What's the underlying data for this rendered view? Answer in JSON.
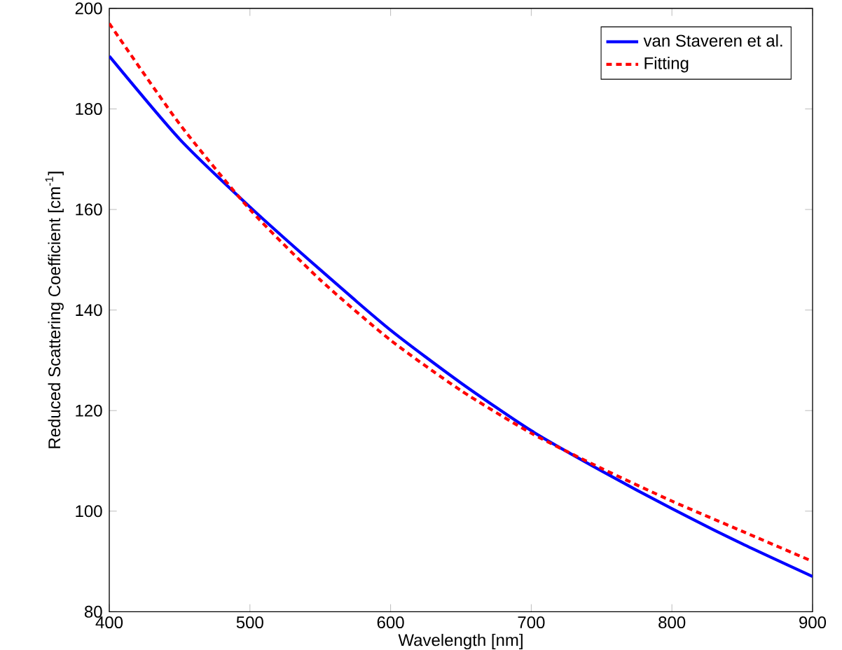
{
  "chart_data": {
    "type": "line",
    "xlabel": "Wavelength [nm]",
    "ylabel": "Reduced Scattering Coefficient [cm$^{-1}$]",
    "x": [
      400,
      450,
      500,
      550,
      600,
      650,
      700,
      750,
      800,
      850,
      900
    ],
    "series": [
      {
        "name": "van Staveren et al.",
        "color": "#0000ff",
        "line_style": "solid",
        "values": [
          190.5,
          174,
          160.5,
          148,
          136,
          125.5,
          116,
          108,
          100.5,
          93.5,
          87
        ]
      },
      {
        "name": "Fitting",
        "color": "#ff0000",
        "line_style": "dotted",
        "values": [
          197,
          177,
          160,
          146,
          134,
          124,
          115.5,
          108.5,
          102,
          96,
          90
        ]
      }
    ],
    "xlim": [
      400,
      900
    ],
    "ylim": [
      80,
      200
    ],
    "xticks": [
      400,
      500,
      600,
      700,
      800,
      900
    ],
    "yticks": [
      80,
      100,
      120,
      140,
      160,
      180,
      200
    ],
    "grid": false,
    "legend": "top right",
    "marker": "none"
  }
}
